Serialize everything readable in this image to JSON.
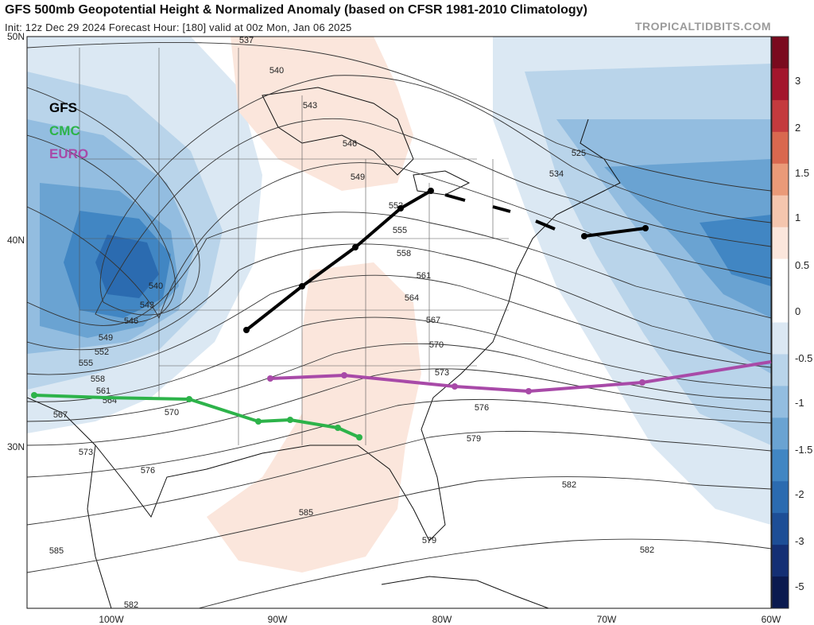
{
  "header": {
    "title": "GFS 500mb Geopotential Height & Normalized Anomaly (based on CFSR 1981-2010 Climatology)",
    "subtitle": "Init: 12z Dec 29 2024   Forecast Hour: [180]   valid at 00z Mon, Jan 06 2025",
    "brand": "TROPICALTIDBITS.COM"
  },
  "model_legend": [
    {
      "name": "GFS",
      "color": "#000000"
    },
    {
      "name": "CMC",
      "color": "#2db34a"
    },
    {
      "name": "EURO",
      "color": "#a84aa8"
    }
  ],
  "axes": {
    "lat_labels": [
      "50N",
      "40N",
      "30N"
    ],
    "lon_labels": [
      "100W",
      "90W",
      "80W",
      "70W",
      "60W"
    ]
  },
  "contour_labels": [
    "537",
    "540",
    "543",
    "546",
    "549",
    "552",
    "534",
    "525",
    "555",
    "558",
    "561",
    "564",
    "567",
    "570",
    "573",
    "576",
    "579",
    "582",
    "585",
    "540",
    "543",
    "546",
    "549",
    "552",
    "555",
    "558",
    "561",
    "564",
    "567",
    "570",
    "573",
    "576",
    "579",
    "582",
    "585",
    "582"
  ],
  "colorbar": {
    "labels": [
      "3",
      "2",
      "1.5",
      "1",
      "0.5",
      "0",
      "-0.5",
      "-1",
      "-1.5",
      "-2",
      "-3",
      "-5"
    ],
    "colors": [
      "#7a0a1e",
      "#a3152c",
      "#c43a3e",
      "#d9684f",
      "#ea9a78",
      "#f5c6ae",
      "#fbe6dc",
      "#ffffff",
      "#ffffff",
      "#dbe8f3",
      "#b9d4ea",
      "#93bde0",
      "#6aa3d2",
      "#4186c3",
      "#2b6bb0",
      "#1d4e96",
      "#142f74",
      "#0b1a4f"
    ]
  }
}
